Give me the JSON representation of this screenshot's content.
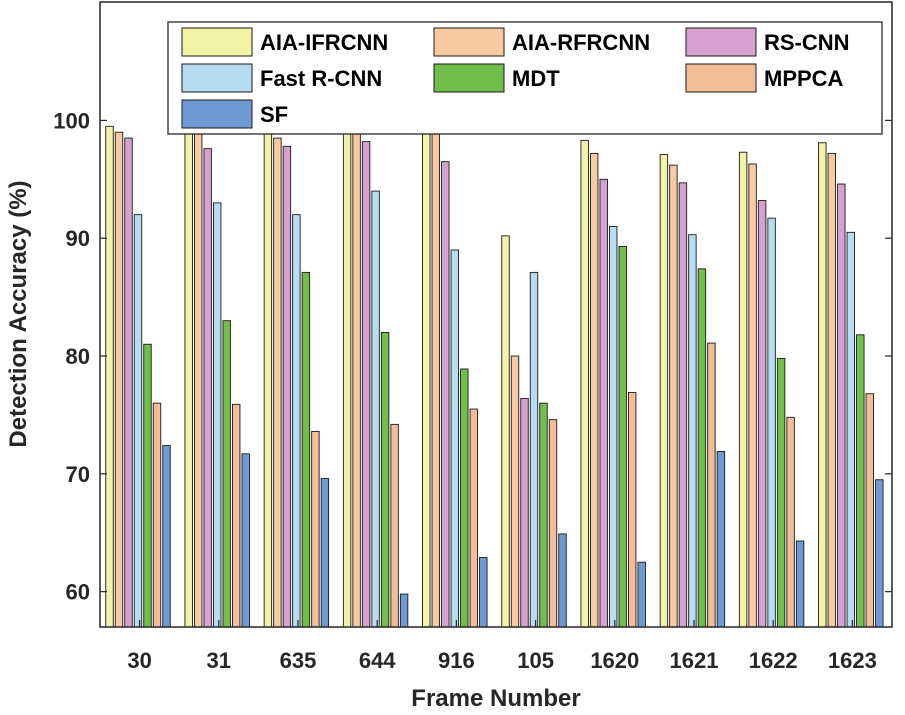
{
  "chart_data": {
    "type": "bar",
    "title": "",
    "xlabel": "Frame Number",
    "ylabel": "Detection Accuracy (%)",
    "ylim": [
      57,
      70000
    ],
    "ylim_note": "",
    "categories": [
      "30",
      "31",
      "635",
      "644",
      "916",
      "105",
      "1620",
      "1621",
      "1622",
      "1623"
    ],
    "yticks": [
      60,
      70,
      80,
      90,
      100
    ],
    "grid": false,
    "legend_placement": "top",
    "series": [
      {
        "name": "AIA-IFRCNN",
        "color": "#f3f3a8",
        "values": [
          99.5,
          99.5,
          99.1,
          99.5,
          99.2,
          90.2,
          98.3,
          97.1,
          97.3,
          98.1
        ]
      },
      {
        "name": "AIA-RFRCNN",
        "color": "#f8caa2",
        "values": [
          99.0,
          99.0,
          98.5,
          99.0,
          99.0,
          80.0,
          97.2,
          96.2,
          96.3,
          97.2
        ]
      },
      {
        "name": "RS-CNN",
        "color": "#d6a1d0",
        "values": [
          98.5,
          97.6,
          97.8,
          98.2,
          96.5,
          76.4,
          95.0,
          94.7,
          93.2,
          94.6
        ]
      },
      {
        "name": "Fast R-CNN",
        "color": "#b5dcf0",
        "values": [
          92.0,
          93.0,
          92.0,
          94.0,
          89.0,
          87.1,
          91.0,
          90.3,
          91.7,
          90.5
        ]
      },
      {
        "name": "MDT",
        "color": "#6fbf4a",
        "values": [
          81.0,
          83.0,
          87.1,
          82.0,
          78.9,
          76.0,
          89.3,
          87.4,
          79.8,
          81.8
        ]
      },
      {
        "name": "MPPCA",
        "color": "#f3bd97",
        "values": [
          76.0,
          75.9,
          73.6,
          74.2,
          75.5,
          74.6,
          76.9,
          81.1,
          74.8,
          76.8
        ]
      },
      {
        "name": "SF",
        "color": "#6e9bd4",
        "values": [
          72.4,
          71.7,
          69.6,
          59.8,
          62.9,
          64.9,
          62.5,
          71.9,
          64.3,
          69.5
        ]
      }
    ]
  }
}
